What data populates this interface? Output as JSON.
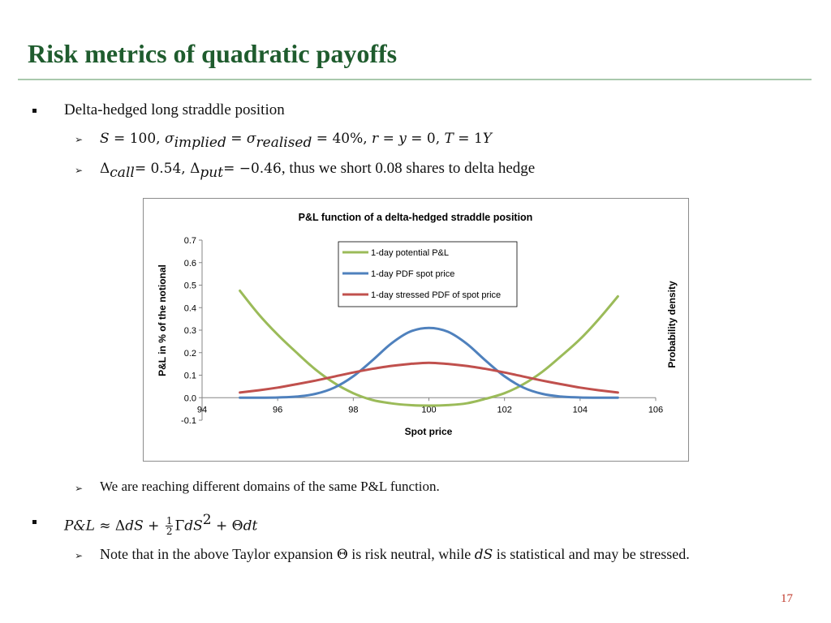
{
  "slide": {
    "title": "Risk metrics of quadratic payoffs",
    "page_number": "17"
  },
  "bullets": {
    "b1": "Delta-hedged long straddle position",
    "b1_sub1": {
      "S": "S",
      "eq1": " = 100, ",
      "sigma1": "σ",
      "sub_implied": "implied",
      "eq2": " = ",
      "sigma2": "σ",
      "sub_realised": "realised",
      "eq3": " = 40%, ",
      "r": "r",
      "eq4": " = ",
      "y": "y",
      "eq5": " = 0, ",
      "T": "T",
      "eq6": " = 1",
      "Y": "Y"
    },
    "b1_sub2": {
      "delta": "Δ",
      "sub_call": "call",
      "eq1": "= 0.54, ",
      "delta2": "Δ",
      "sub_put": "put",
      "eq2": "= −0.46",
      "text": ", thus we short 0.08 shares to delta hedge"
    },
    "b1_sub3": "We are reaching different domains of the same P&L function.",
    "b2": {
      "lhs": "P&L",
      "approx": " ≈ Δ",
      "dS": "dS",
      "plus1": " + ",
      "frac_num": "1",
      "frac_den": "2",
      "gamma": "Γ",
      "dS2": "dS",
      "sq": "2",
      "plus2": " + Θ",
      "dt": "dt"
    },
    "b2_sub1": {
      "pre": "Note that in the above Taylor expansion ",
      "theta": "Θ",
      "mid": " is risk neutral, while ",
      "dS": "dS",
      "post": " is statistical and may be stressed."
    }
  },
  "chart_data": {
    "type": "line",
    "title": "P&L function of a delta-hedged straddle position",
    "xlabel": "Spot price",
    "ylabel": "P&L in % of the notional",
    "ylabel_right": "Probability density",
    "xlim": [
      94,
      106
    ],
    "ylim": [
      -0.1,
      0.7
    ],
    "x_ticks": [
      "94",
      "96",
      "98",
      "100",
      "102",
      "104",
      "106"
    ],
    "y_ticks": [
      "-0.1",
      "0.0",
      "0.1",
      "0.2",
      "0.3",
      "0.4",
      "0.5",
      "0.6",
      "0.7"
    ],
    "grid": false,
    "legend_position": "top-right",
    "series": [
      {
        "name": "1-day potential P&L",
        "color": "#9bbb59",
        "x": [
          95,
          95.5,
          96,
          96.5,
          97,
          97.5,
          98,
          98.5,
          99,
          99.5,
          100,
          100.5,
          101,
          101.5,
          102,
          102.5,
          103,
          103.5,
          104,
          104.5,
          105
        ],
        "y": [
          0.475,
          0.37,
          0.28,
          0.2,
          0.125,
          0.065,
          0.02,
          -0.01,
          -0.025,
          -0.033,
          -0.035,
          -0.033,
          -0.025,
          -0.005,
          0.02,
          0.06,
          0.115,
          0.185,
          0.26,
          0.35,
          0.45
        ]
      },
      {
        "name": "1-day PDF spot price",
        "color": "#4f81bd",
        "x": [
          95,
          95.5,
          96,
          96.5,
          97,
          97.5,
          98,
          98.5,
          99,
          99.5,
          100,
          100.5,
          101,
          101.5,
          102,
          102.5,
          103,
          103.5,
          104,
          104.5,
          105
        ],
        "y": [
          0.0,
          0.0,
          0.001,
          0.005,
          0.017,
          0.045,
          0.095,
          0.165,
          0.24,
          0.293,
          0.31,
          0.293,
          0.24,
          0.165,
          0.095,
          0.045,
          0.017,
          0.005,
          0.001,
          0.0,
          0.0
        ]
      },
      {
        "name": "1-day stressed PDF of spot price",
        "color": "#c0504d",
        "x": [
          95,
          95.5,
          96,
          96.5,
          97,
          97.5,
          98,
          98.5,
          99,
          99.5,
          100,
          100.5,
          101,
          101.5,
          102,
          102.5,
          103,
          103.5,
          104,
          104.5,
          105
        ],
        "y": [
          0.023,
          0.033,
          0.045,
          0.06,
          0.076,
          0.094,
          0.112,
          0.128,
          0.141,
          0.15,
          0.155,
          0.15,
          0.141,
          0.128,
          0.112,
          0.094,
          0.076,
          0.06,
          0.045,
          0.033,
          0.023
        ]
      }
    ]
  }
}
